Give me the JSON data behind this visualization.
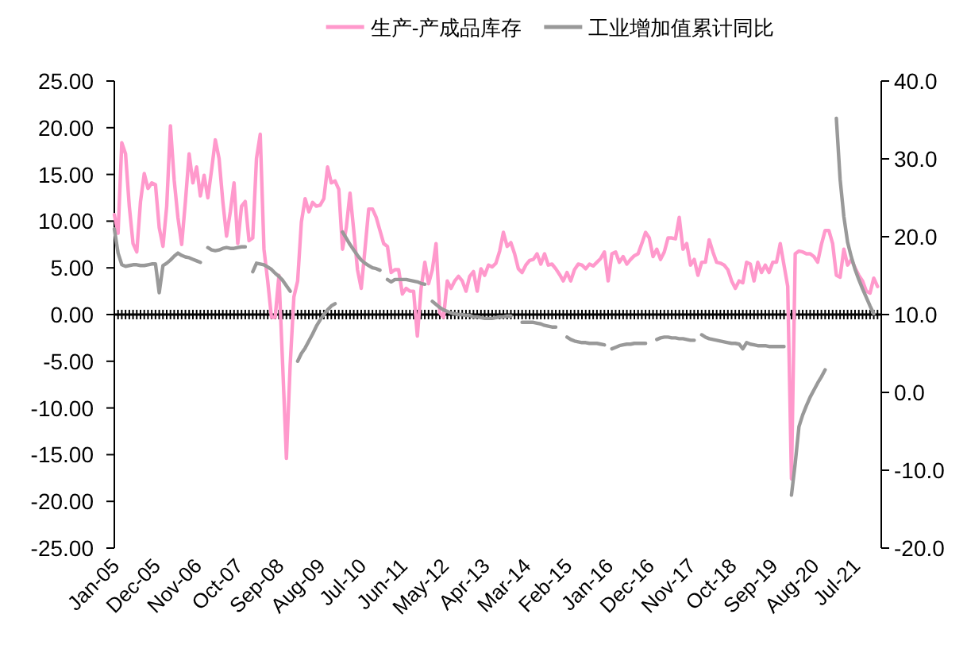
{
  "chart_data": {
    "type": "line",
    "legend": "top",
    "xlim": [
      "2005-01",
      "2022-02"
    ],
    "xticks": [
      {
        "value": "2005-01",
        "label": "Jan-05"
      },
      {
        "value": "2005-12",
        "label": "Dec-05"
      },
      {
        "value": "2006-11",
        "label": "Nov-06"
      },
      {
        "value": "2007-10",
        "label": "Oct-07"
      },
      {
        "value": "2008-09",
        "label": "Sep-08"
      },
      {
        "value": "2009-08",
        "label": "Aug-09"
      },
      {
        "value": "2010-07",
        "label": "Jul-10"
      },
      {
        "value": "2011-06",
        "label": "Jun-11"
      },
      {
        "value": "2012-05",
        "label": "May-12"
      },
      {
        "value": "2013-04",
        "label": "Apr-13"
      },
      {
        "value": "2014-03",
        "label": "Mar-14"
      },
      {
        "value": "2015-02",
        "label": "Feb-15"
      },
      {
        "value": "2016-01",
        "label": "Jan-16"
      },
      {
        "value": "2016-12",
        "label": "Dec-16"
      },
      {
        "value": "2017-11",
        "label": "Nov-17"
      },
      {
        "value": "2018-10",
        "label": "Oct-18"
      },
      {
        "value": "2019-09",
        "label": "Sep-19"
      },
      {
        "value": "2020-08",
        "label": "Aug-20"
      },
      {
        "value": "2021-07",
        "label": "Jul-21"
      }
    ],
    "ylim": [
      -25,
      25
    ],
    "yticks": [
      {
        "value": -25,
        "label": "-25.00"
      },
      {
        "value": -20,
        "label": "-20.00"
      },
      {
        "value": -15,
        "label": "-15.00"
      },
      {
        "value": -10,
        "label": "-10.00"
      },
      {
        "value": -5,
        "label": "-5.00"
      },
      {
        "value": 0,
        "label": "0.00"
      },
      {
        "value": 5,
        "label": "5.00"
      },
      {
        "value": 10,
        "label": "10.00"
      },
      {
        "value": 15,
        "label": "15.00"
      },
      {
        "value": 20,
        "label": "20.00"
      },
      {
        "value": 25,
        "label": "25.00"
      }
    ],
    "y2lim": [
      -20,
      40
    ],
    "y2ticks": [
      {
        "value": -20,
        "label": "-20.0"
      },
      {
        "value": -10,
        "label": "-10.0"
      },
      {
        "value": 0,
        "label": "0.0"
      },
      {
        "value": 10,
        "label": "10.0"
      },
      {
        "value": 20,
        "label": "20.0"
      },
      {
        "value": 30,
        "label": "30.0"
      },
      {
        "value": 40,
        "label": "40.0"
      }
    ],
    "x": [
      "2005-01",
      "2005-02",
      "2005-03",
      "2005-04",
      "2005-05",
      "2005-06",
      "2005-07",
      "2005-08",
      "2005-09",
      "2005-10",
      "2005-11",
      "2005-12",
      "2006-01",
      "2006-02",
      "2006-03",
      "2006-04",
      "2006-05",
      "2006-06",
      "2006-07",
      "2006-08",
      "2006-09",
      "2006-10",
      "2006-11",
      "2006-12",
      "2007-01",
      "2007-02",
      "2007-03",
      "2007-04",
      "2007-05",
      "2007-06",
      "2007-07",
      "2007-08",
      "2007-09",
      "2007-10",
      "2007-11",
      "2007-12",
      "2008-01",
      "2008-02",
      "2008-03",
      "2008-04",
      "2008-05",
      "2008-06",
      "2008-07",
      "2008-08",
      "2008-09",
      "2008-10",
      "2008-11",
      "2008-12",
      "2009-01",
      "2009-02",
      "2009-03",
      "2009-04",
      "2009-05",
      "2009-06",
      "2009-07",
      "2009-08",
      "2009-09",
      "2009-10",
      "2009-11",
      "2009-12",
      "2010-01",
      "2010-02",
      "2010-03",
      "2010-04",
      "2010-05",
      "2010-06",
      "2010-07",
      "2010-08",
      "2010-09",
      "2010-10",
      "2010-11",
      "2010-12",
      "2011-01",
      "2011-02",
      "2011-03",
      "2011-04",
      "2011-05",
      "2011-06",
      "2011-07",
      "2011-08",
      "2011-09",
      "2011-10",
      "2011-11",
      "2011-12",
      "2012-01",
      "2012-02",
      "2012-03",
      "2012-04",
      "2012-05",
      "2012-06",
      "2012-07",
      "2012-08",
      "2012-09",
      "2012-10",
      "2012-11",
      "2012-12",
      "2013-01",
      "2013-02",
      "2013-03",
      "2013-04",
      "2013-05",
      "2013-06",
      "2013-07",
      "2013-08",
      "2013-09",
      "2013-10",
      "2013-11",
      "2013-12",
      "2014-01",
      "2014-02",
      "2014-03",
      "2014-04",
      "2014-05",
      "2014-06",
      "2014-07",
      "2014-08",
      "2014-09",
      "2014-10",
      "2014-11",
      "2014-12",
      "2015-01",
      "2015-02",
      "2015-03",
      "2015-04",
      "2015-05",
      "2015-06",
      "2015-07",
      "2015-08",
      "2015-09",
      "2015-10",
      "2015-11",
      "2015-12",
      "2016-01",
      "2016-02",
      "2016-03",
      "2016-04",
      "2016-05",
      "2016-06",
      "2016-07",
      "2016-08",
      "2016-09",
      "2016-10",
      "2016-11",
      "2016-12",
      "2017-01",
      "2017-02",
      "2017-03",
      "2017-04",
      "2017-05",
      "2017-06",
      "2017-07",
      "2017-08",
      "2017-09",
      "2017-10",
      "2017-11",
      "2017-12",
      "2018-01",
      "2018-02",
      "2018-03",
      "2018-04",
      "2018-05",
      "2018-06",
      "2018-07",
      "2018-08",
      "2018-09",
      "2018-10",
      "2018-11",
      "2018-12",
      "2019-01",
      "2019-02",
      "2019-03",
      "2019-04",
      "2019-05",
      "2019-06",
      "2019-07",
      "2019-08",
      "2019-09",
      "2019-10",
      "2019-11",
      "2019-12",
      "2020-01",
      "2020-02",
      "2020-03",
      "2020-04",
      "2020-05",
      "2020-06",
      "2020-07",
      "2020-08",
      "2020-09",
      "2020-10",
      "2020-11",
      "2020-12",
      "2021-01",
      "2021-02",
      "2021-03",
      "2021-04",
      "2021-05",
      "2021-06",
      "2021-07",
      "2021-08",
      "2021-09",
      "2021-10",
      "2021-11",
      "2021-12",
      "2022-01"
    ],
    "series": [
      {
        "name": "生产-产成品库存",
        "color": "#ff99cc",
        "values": [
          10.7,
          8.7,
          18.4,
          17.2,
          11.6,
          7.6,
          6.7,
          12.1,
          15.1,
          13.5,
          14.1,
          13.9,
          9.3,
          7.3,
          11.6,
          20.2,
          14.4,
          10.4,
          7.5,
          12.1,
          17.2,
          14.1,
          15.8,
          12.7,
          14.9,
          12.5,
          15.5,
          18.7,
          16.7,
          12.1,
          8.4,
          11.0,
          14.1,
          7.6,
          11.6,
          12.1,
          7.9,
          8.2,
          16.7,
          19.3,
          7.0,
          3.6,
          -0.3,
          -0.3,
          4.2,
          -5.4,
          -15.4,
          -5.4,
          1.9,
          3.6,
          9.9,
          12.4,
          11.0,
          12.0,
          11.6,
          11.7,
          12.4,
          15.8,
          14.1,
          14.3,
          13.4,
          7.0,
          9.3,
          13.0,
          9.0,
          4.8,
          2.8,
          7.0,
          11.3,
          11.3,
          10.4,
          9.0,
          7.6,
          7.3,
          4.5,
          4.8,
          4.8,
          2.2,
          2.8,
          2.5,
          2.5,
          -2.3,
          2.8,
          5.6,
          3.3,
          4.8,
          7.6,
          0.2,
          -0.3,
          3.6,
          2.8,
          3.6,
          4.1,
          3.6,
          2.5,
          4.1,
          4.6,
          2.5,
          4.9,
          4.2,
          5.3,
          5.1,
          5.5,
          6.8,
          8.8,
          7.3,
          7.7,
          6.5,
          4.9,
          4.5,
          5.3,
          5.8,
          5.9,
          6.5,
          5.4,
          6.5,
          5.3,
          5.4,
          4.9,
          4.3,
          3.6,
          4.5,
          3.6,
          4.8,
          5.4,
          5.3,
          4.9,
          5.4,
          5.2,
          5.6,
          6.0,
          6.7,
          3.6,
          6.5,
          6.7,
          5.6,
          6.2,
          5.4,
          5.9,
          6.3,
          6.5,
          7.6,
          8.8,
          8.2,
          6.2,
          7.0,
          5.9,
          6.7,
          8.2,
          8.2,
          8.1,
          10.4,
          7.0,
          7.6,
          5.3,
          5.9,
          4.2,
          5.6,
          5.6,
          8.0,
          6.7,
          5.6,
          5.5,
          5.3,
          4.8,
          3.6,
          2.8,
          3.6,
          3.4,
          5.6,
          5.4,
          3.6,
          5.6,
          4.5,
          5.3,
          4.5,
          5.6,
          5.6,
          7.6,
          5.3,
          3.0,
          -17.6,
          6.5,
          6.8,
          6.7,
          6.5,
          6.5,
          6.2,
          5.6,
          7.5,
          9.0,
          9.0,
          7.6,
          4.2,
          4.0,
          7.0,
          5.3,
          5.9,
          5.0,
          4.2,
          3.6,
          2.5,
          2.3,
          3.9,
          3.0
        ]
      },
      {
        "name": "工业增加值累计同比",
        "color": "#999999",
        "axis": "y2",
        "values": [
          21.0,
          17.9,
          16.4,
          16.2,
          16.3,
          16.4,
          16.4,
          16.3,
          16.3,
          16.4,
          16.5,
          16.5,
          12.8,
          16.3,
          16.6,
          17.0,
          17.5,
          17.9,
          17.6,
          17.4,
          17.3,
          17.1,
          16.9,
          16.7,
          null,
          18.6,
          18.3,
          18.2,
          18.3,
          18.5,
          18.6,
          18.5,
          18.5,
          18.6,
          18.7,
          18.7,
          null,
          15.5,
          16.6,
          16.5,
          16.4,
          16.1,
          15.8,
          15.3,
          14.9,
          14.4,
          13.7,
          13.0,
          null,
          4.0,
          5.0,
          5.7,
          6.6,
          7.5,
          8.5,
          9.3,
          10.0,
          10.6,
          11.1,
          11.4,
          null,
          20.6,
          19.8,
          19.0,
          18.3,
          17.6,
          17.0,
          16.6,
          16.3,
          16.0,
          15.9,
          15.7,
          null,
          14.5,
          14.2,
          14.5,
          14.5,
          14.5,
          14.5,
          14.4,
          14.3,
          14.2,
          14.0,
          13.9,
          null,
          11.7,
          11.3,
          10.9,
          10.6,
          10.4,
          10.2,
          10.1,
          10.0,
          10.0,
          9.9,
          9.9,
          9.7,
          9.7,
          9.6,
          9.5,
          9.5,
          9.5,
          9.6,
          9.7,
          9.7,
          9.8,
          9.8,
          null,
          null,
          9.0,
          9.0,
          9.0,
          9.0,
          8.9,
          8.8,
          8.6,
          8.5,
          8.4,
          8.4,
          null,
          null,
          7.1,
          6.8,
          6.6,
          6.5,
          6.4,
          6.4,
          6.3,
          6.3,
          6.3,
          6.2,
          6.1,
          null,
          5.6,
          5.8,
          6.0,
          6.1,
          6.2,
          6.2,
          6.3,
          6.3,
          6.3,
          6.3,
          null,
          null,
          6.8,
          7.0,
          7.1,
          7.1,
          7.0,
          7.0,
          6.9,
          6.9,
          6.8,
          6.7,
          6.7,
          null,
          7.4,
          7.1,
          6.9,
          6.8,
          6.7,
          6.6,
          6.5,
          6.4,
          6.3,
          6.3,
          6.2,
          5.6,
          6.4,
          6.2,
          6.1,
          6.0,
          6.0,
          6.0,
          5.9,
          5.9,
          5.9,
          5.9,
          5.9,
          null,
          -13.2,
          -9.1,
          -4.4,
          -2.9,
          -1.7,
          -0.6,
          0.3,
          1.2,
          2.0,
          2.9,
          null,
          null,
          35.2,
          27.4,
          22.6,
          19.3,
          17.4,
          15.8,
          14.5,
          13.3,
          12.2,
          11.1,
          10.1,
          null
        ]
      }
    ]
  }
}
